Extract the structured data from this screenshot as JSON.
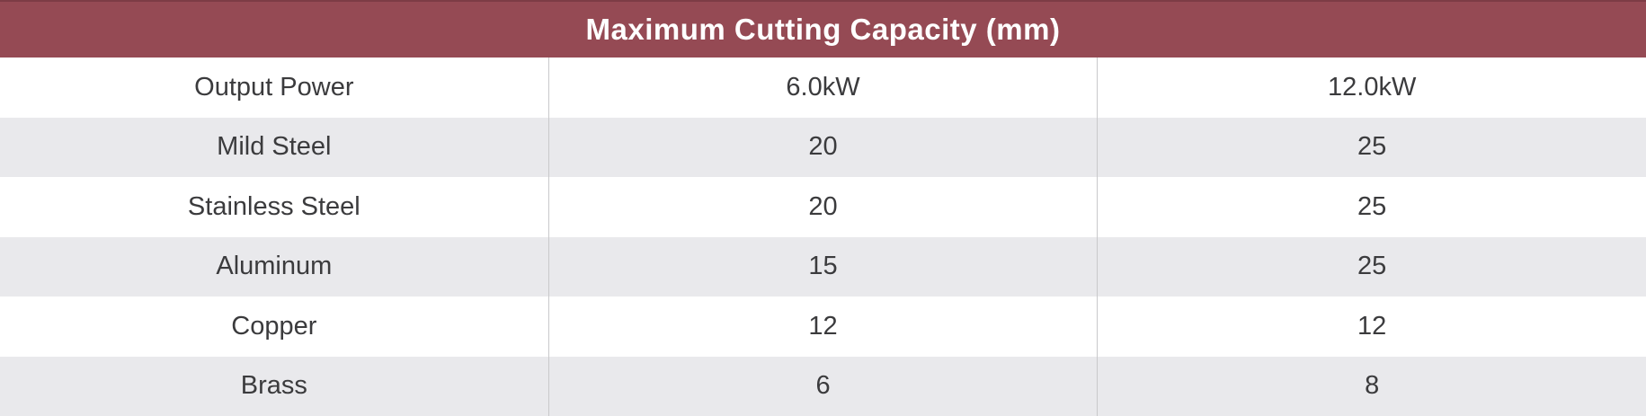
{
  "colors": {
    "header_bg": "#954a54",
    "header_top_border": "#7d3c45",
    "header_text": "#ffffff",
    "row_alt_bg": "#e9e9ec",
    "row_bg": "#ffffff",
    "divider": "#c9c9cb",
    "cell_text": "#3b3b3d"
  },
  "chart_data": {
    "type": "table",
    "title": "Maximum Cutting Capacity (mm)",
    "rows": [
      [
        "Output Power",
        "6.0kW",
        "12.0kW"
      ],
      [
        "Mild Steel",
        "20",
        "25"
      ],
      [
        "Stainless Steel",
        "20",
        "25"
      ],
      [
        "Aluminum",
        "15",
        "25"
      ],
      [
        "Copper",
        "12",
        "12"
      ],
      [
        "Brass",
        "6",
        "8"
      ]
    ]
  }
}
